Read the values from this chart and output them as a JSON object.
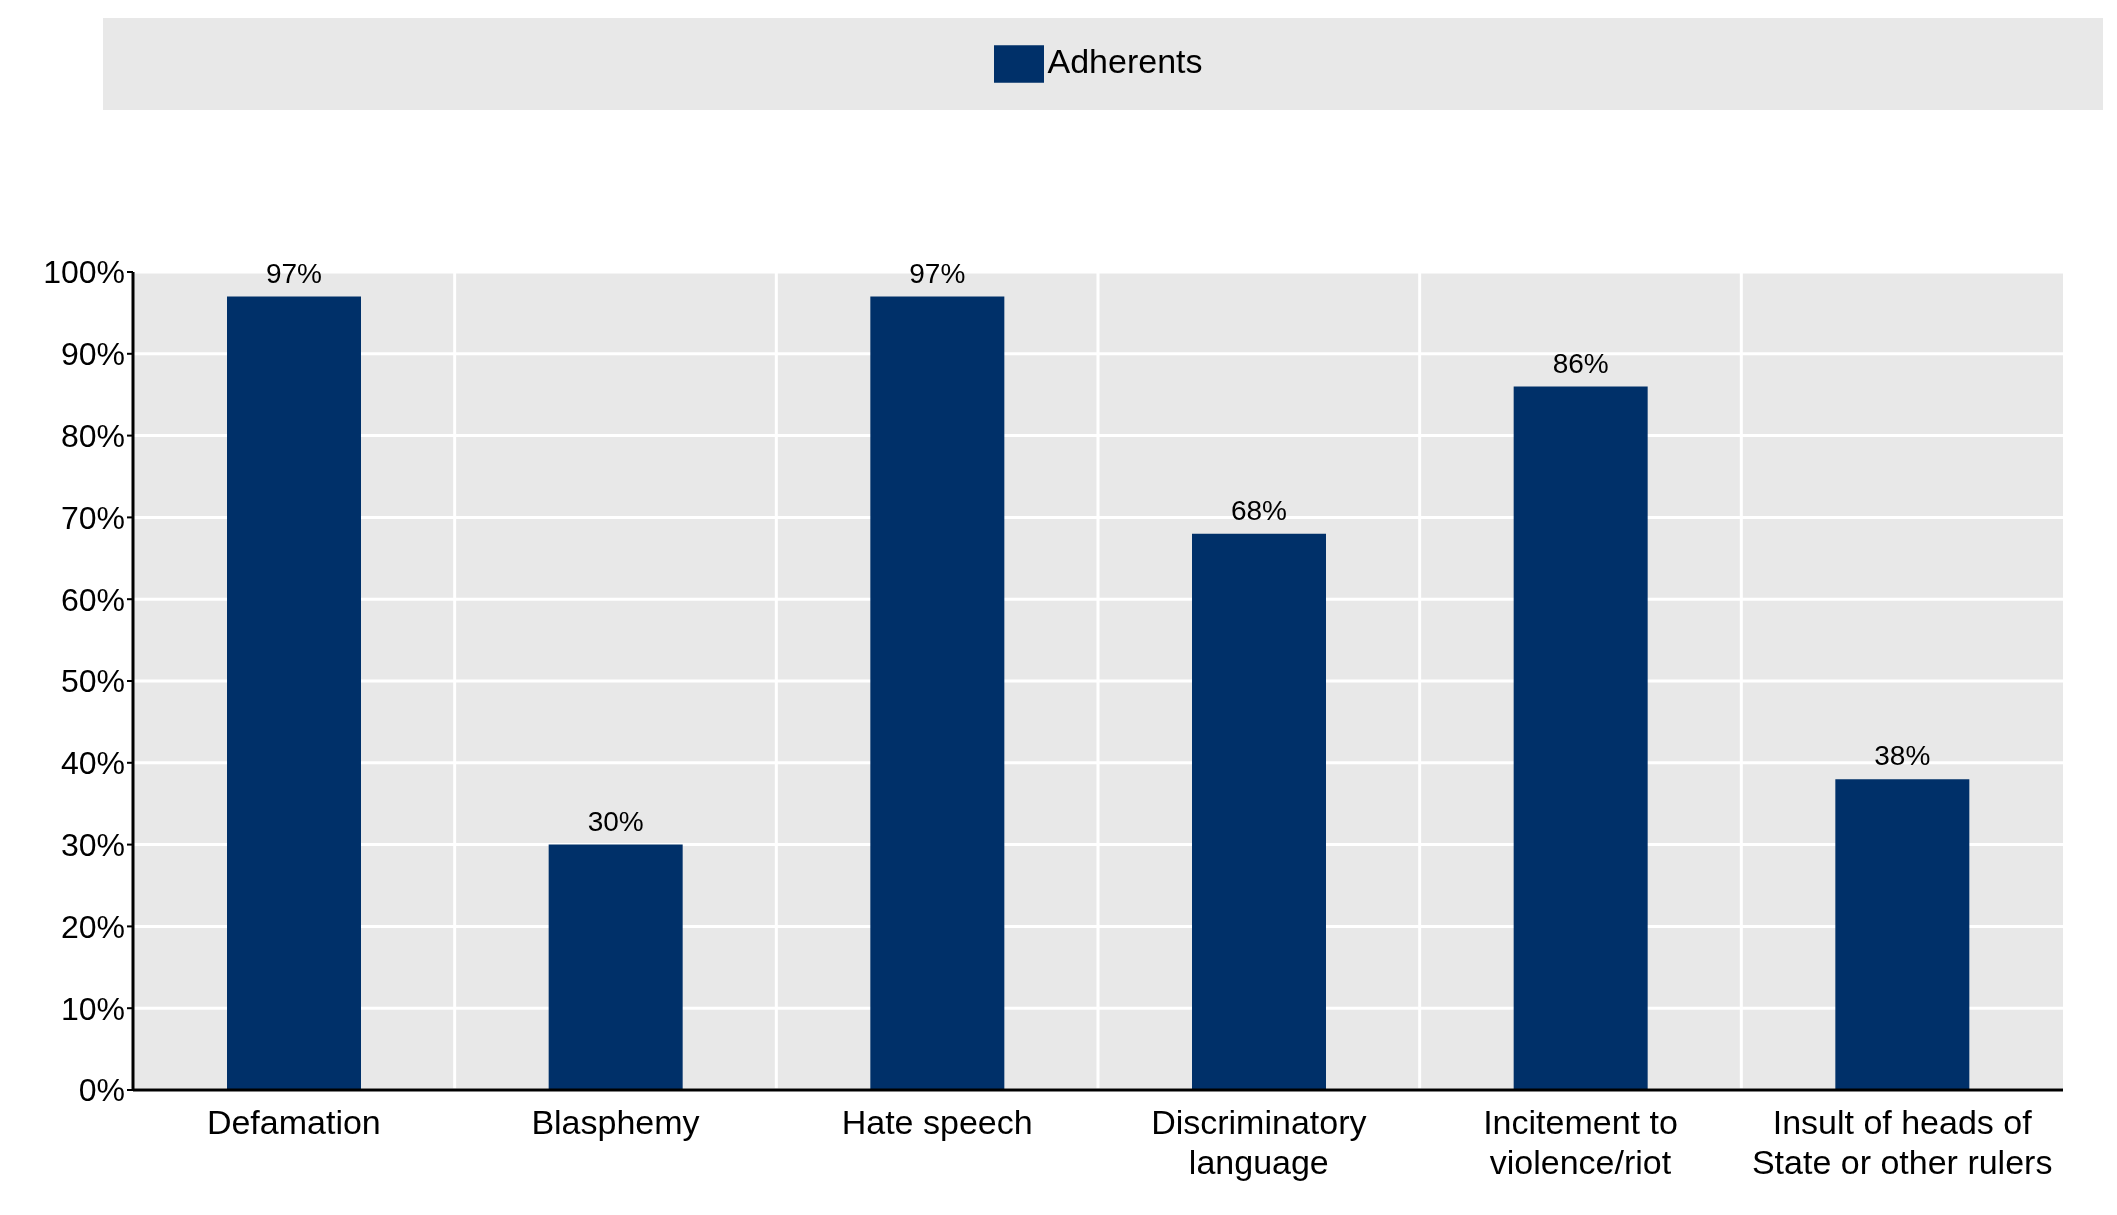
{
  "chart_data": {
    "type": "bar",
    "categories": [
      "Defamation",
      "Blasphemy",
      "Hate speech",
      "Discriminatory language",
      "Incitement to violence/riot",
      "Insult of heads of State or other rulers"
    ],
    "series": [
      {
        "name": "Adherents",
        "color": "#003069",
        "values": [
          97,
          30,
          97,
          68,
          86,
          38
        ]
      }
    ],
    "ylim": [
      0,
      100
    ],
    "yticks": [
      {
        "value": 0,
        "label": "0%"
      },
      {
        "value": 10,
        "label": "10%"
      },
      {
        "value": 20,
        "label": "20%"
      },
      {
        "value": 30,
        "label": "30%"
      },
      {
        "value": 40,
        "label": "40%"
      },
      {
        "value": 50,
        "label": "50%"
      },
      {
        "value": 60,
        "label": "60%"
      },
      {
        "value": 70,
        "label": "70%"
      },
      {
        "value": 80,
        "label": "80%"
      },
      {
        "value": 90,
        "label": "90%"
      },
      {
        "value": 100,
        "label": "100%"
      }
    ],
    "value_labels": [
      "97%",
      "30%",
      "97%",
      "68%",
      "86%",
      "38%"
    ],
    "grid": true,
    "legend": "top"
  }
}
